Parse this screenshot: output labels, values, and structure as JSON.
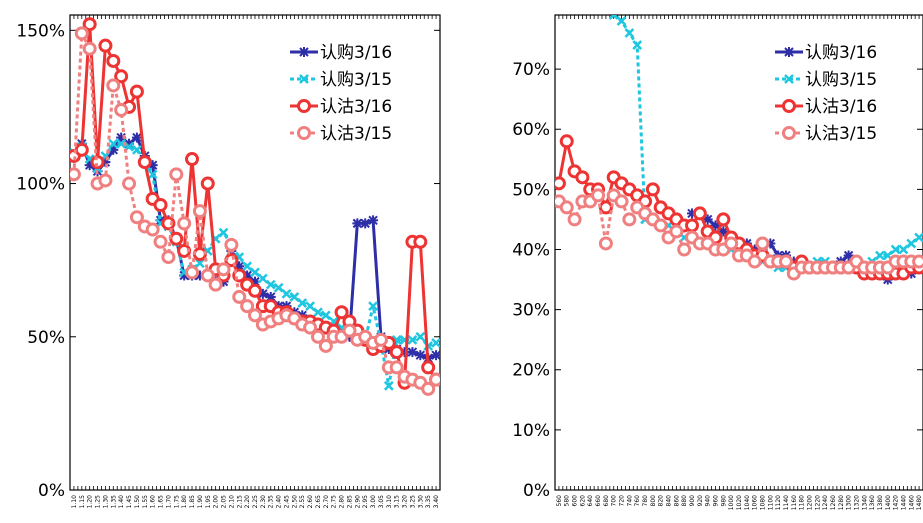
{
  "charts": [
    {
      "type": "line",
      "categories": [
        "1.10",
        "1.15",
        "1.20",
        "1.25",
        "1.30",
        "1.35",
        "1.40",
        "1.45",
        "1.50",
        "1.55",
        "1.60",
        "1.65",
        "1.70",
        "1.75",
        "1.80",
        "1.85",
        "1.90",
        "1.95",
        "2.00",
        "2.05",
        "2.10",
        "2.15",
        "2.20",
        "2.25",
        "2.30",
        "2.35",
        "2.40",
        "2.45",
        "2.50",
        "2.55",
        "2.60",
        "2.65",
        "2.70",
        "2.75",
        "2.80",
        "2.85",
        "2.90",
        "2.95",
        "3.00",
        "3.05",
        "3.10",
        "3.15",
        "3.20",
        "3.25",
        "3.30",
        "3.35",
        "3.40"
      ],
      "y_ticks": [
        "0%",
        "50%",
        "100%",
        "150%"
      ],
      "ylim": [
        0,
        1.55
      ],
      "series": [
        {
          "name": "认购3/16",
          "color": "#2e2ea8",
          "marker": "star",
          "dash": "solid",
          "values": [
            1.09,
            1.13,
            1.06,
            1.04,
            1.07,
            1.11,
            1.15,
            1.13,
            1.15,
            1.09,
            1.06,
            0.88,
            0.88,
            0.82,
            0.7,
            0.7,
            0.7,
            0.7,
            0.68,
            0.68,
            0.78,
            0.73,
            0.7,
            0.68,
            0.64,
            0.63,
            0.6,
            0.6,
            0.58,
            0.57,
            0.55,
            0.54,
            0.53,
            0.52,
            0.51,
            0.5,
            0.87,
            0.87,
            0.88,
            0.5,
            0.46,
            0.46,
            0.45,
            0.45,
            0.44,
            0.43,
            0.44
          ]
        },
        {
          "name": "认购3/15",
          "color": "#1ec6e0",
          "marker": "x",
          "dash": "dot",
          "values": [
            1.1,
            1.12,
            1.08,
            1.05,
            1.09,
            1.13,
            1.13,
            1.12,
            1.11,
            1.07,
            1.03,
            0.87,
            0.86,
            0.81,
            0.71,
            0.72,
            0.74,
            0.78,
            0.82,
            0.84,
            0.8,
            0.76,
            0.73,
            0.71,
            0.69,
            0.67,
            0.66,
            0.64,
            0.63,
            0.61,
            0.6,
            0.58,
            0.57,
            0.55,
            0.53,
            0.52,
            0.51,
            0.49,
            0.6,
            0.48,
            0.34,
            0.49,
            0.49,
            0.49,
            0.5,
            0.47,
            0.48
          ]
        },
        {
          "name": "认沽3/16",
          "color": "#ee3333",
          "marker": "circle",
          "dash": "solid",
          "values": [
            1.09,
            1.11,
            1.52,
            1.07,
            1.45,
            1.4,
            1.35,
            1.25,
            1.3,
            1.07,
            0.95,
            0.93,
            0.87,
            0.82,
            0.78,
            1.08,
            0.77,
            1.0,
            0.72,
            0.7,
            0.75,
            0.7,
            0.67,
            0.65,
            0.6,
            0.6,
            0.58,
            0.58,
            0.56,
            0.55,
            0.55,
            0.54,
            0.53,
            0.52,
            0.58,
            0.55,
            0.52,
            0.49,
            0.46,
            0.47,
            0.48,
            0.45,
            0.35,
            0.81,
            0.81,
            0.4,
            0.36
          ]
        },
        {
          "name": "认沽3/15",
          "color": "#f08080",
          "marker": "circle",
          "dash": "dot",
          "values": [
            1.03,
            1.49,
            1.44,
            1.0,
            1.01,
            1.32,
            1.24,
            1.0,
            0.89,
            0.86,
            0.85,
            0.81,
            0.76,
            1.03,
            0.87,
            0.71,
            0.91,
            0.7,
            0.67,
            0.72,
            0.8,
            0.63,
            0.6,
            0.57,
            0.54,
            0.55,
            0.56,
            0.57,
            0.56,
            0.54,
            0.53,
            0.5,
            0.47,
            0.5,
            0.5,
            0.52,
            0.49,
            0.5,
            0.48,
            0.49,
            0.4,
            0.4,
            0.37,
            0.36,
            0.35,
            0.33,
            0.36
          ]
        }
      ]
    },
    {
      "type": "line",
      "categories": [
        "560",
        "580",
        "600",
        "620",
        "640",
        "660",
        "680",
        "700",
        "720",
        "740",
        "760",
        "780",
        "800",
        "820",
        "840",
        "860",
        "880",
        "900",
        "920",
        "940",
        "960",
        "980",
        "1000",
        "1020",
        "1040",
        "1060",
        "1080",
        "1100",
        "1120",
        "1140",
        "1160",
        "1180",
        "1200",
        "1220",
        "1240",
        "1260",
        "1280",
        "1300",
        "1320",
        "1340",
        "1360",
        "1380",
        "1400",
        "1420",
        "1440",
        "1460",
        "1480"
      ],
      "y_ticks": [
        "0%",
        "10%",
        "20%",
        "30%",
        "40%",
        "50%",
        "60%",
        "70%"
      ],
      "ylim": [
        0,
        0.79
      ],
      "series": [
        {
          "name": "认购3/16",
          "color": "#2e2ea8",
          "marker": "star",
          "dash": "solid",
          "values": [
            null,
            null,
            null,
            null,
            null,
            null,
            null,
            null,
            null,
            null,
            null,
            null,
            null,
            null,
            null,
            null,
            null,
            0.46,
            0.46,
            0.45,
            0.44,
            0.43,
            0.42,
            0.41,
            0.41,
            0.4,
            0.4,
            0.41,
            0.39,
            0.39,
            0.38,
            0.38,
            0.37,
            0.37,
            0.37,
            0.37,
            0.38,
            0.39,
            0.38,
            0.37,
            0.37,
            0.36,
            0.35,
            0.36,
            0.36,
            0.36,
            0.37
          ]
        },
        {
          "name": "认购3/15",
          "color": "#1ec6e0",
          "marker": "x",
          "dash": "dot",
          "values": [
            null,
            null,
            null,
            null,
            null,
            null,
            null,
            0.79,
            0.78,
            0.76,
            0.74,
            0.45,
            0.45,
            0.44,
            0.44,
            0.43,
            0.42,
            0.42,
            0.41,
            0.41,
            0.4,
            0.4,
            0.4,
            0.39,
            0.39,
            0.38,
            0.38,
            0.38,
            0.37,
            0.37,
            0.37,
            0.37,
            0.37,
            0.38,
            0.38,
            0.37,
            0.37,
            0.37,
            0.37,
            0.37,
            0.38,
            0.39,
            0.39,
            0.4,
            0.4,
            0.41,
            0.42
          ]
        },
        {
          "name": "认沽3/16",
          "color": "#ee3333",
          "marker": "circle",
          "dash": "solid",
          "values": [
            0.51,
            0.58,
            0.53,
            0.52,
            0.5,
            0.5,
            0.47,
            0.52,
            0.51,
            0.5,
            0.49,
            0.48,
            0.5,
            0.47,
            0.46,
            0.45,
            0.44,
            0.44,
            0.46,
            0.43,
            0.42,
            0.45,
            0.42,
            0.41,
            0.4,
            0.39,
            0.39,
            0.38,
            0.38,
            0.38,
            0.37,
            0.38,
            0.37,
            0.37,
            0.37,
            0.37,
            0.37,
            0.37,
            0.37,
            0.36,
            0.36,
            0.36,
            0.36,
            0.36,
            0.36,
            0.37,
            0.37
          ]
        },
        {
          "name": "认沽3/15",
          "color": "#f08080",
          "marker": "circle",
          "dash": "dot",
          "values": [
            0.48,
            0.47,
            0.45,
            0.48,
            0.48,
            0.49,
            0.41,
            0.49,
            0.48,
            0.45,
            0.47,
            0.46,
            0.45,
            0.44,
            0.42,
            0.43,
            0.4,
            0.42,
            0.41,
            0.41,
            0.4,
            0.4,
            0.41,
            0.39,
            0.39,
            0.38,
            0.41,
            0.38,
            0.38,
            0.38,
            0.36,
            0.37,
            0.37,
            0.37,
            0.37,
            0.37,
            0.37,
            0.37,
            0.38,
            0.37,
            0.37,
            0.37,
            0.37,
            0.38,
            0.38,
            0.38,
            0.38
          ]
        }
      ]
    }
  ]
}
